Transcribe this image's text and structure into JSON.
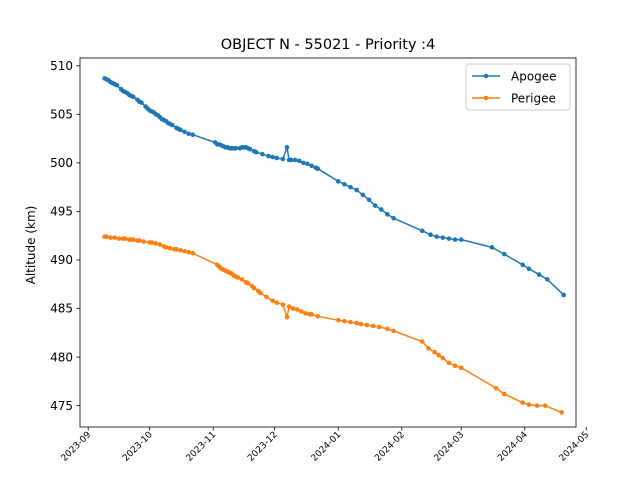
{
  "chart_data": {
    "type": "line",
    "title": "OBJECT N - 55021 - Priority :4",
    "xlabel": "",
    "ylabel": "Altitude (km)",
    "x_ticks": [
      "2023-09",
      "2023-10",
      "2023-11",
      "2023-12",
      "2024-01",
      "2024-02",
      "2024-03",
      "2024-04",
      "2024-05"
    ],
    "y_ticks": [
      475,
      480,
      485,
      490,
      495,
      500,
      505,
      510
    ],
    "ylim": [
      472.8,
      510.8
    ],
    "xlim": [
      "2023-08-28",
      "2024-04-26"
    ],
    "grid": false,
    "legend": "top-right",
    "colors": {
      "Apogee": "#1f77b4",
      "Perigee": "#ff7f0e"
    },
    "series": [
      {
        "name": "Apogee",
        "points": [
          [
            "2023-09-09",
            508.7
          ],
          [
            "2023-09-10",
            508.6
          ],
          [
            "2023-09-11",
            508.5
          ],
          [
            "2023-09-12",
            508.3
          ],
          [
            "2023-09-13",
            508.2
          ],
          [
            "2023-09-14",
            508.1
          ],
          [
            "2023-09-15",
            508.0
          ],
          [
            "2023-09-17",
            507.6
          ],
          [
            "2023-09-18",
            507.4
          ],
          [
            "2023-09-19",
            507.3
          ],
          [
            "2023-09-20",
            507.2
          ],
          [
            "2023-09-21",
            507.0
          ],
          [
            "2023-09-22",
            506.9
          ],
          [
            "2023-09-23",
            506.8
          ],
          [
            "2023-09-25",
            506.5
          ],
          [
            "2023-09-26",
            506.3
          ],
          [
            "2023-09-27",
            506.2
          ],
          [
            "2023-09-29",
            505.8
          ],
          [
            "2023-09-30",
            505.6
          ],
          [
            "2023-10-01",
            505.4
          ],
          [
            "2023-10-02",
            505.3
          ],
          [
            "2023-10-03",
            505.2
          ],
          [
            "2023-10-04",
            505.0
          ],
          [
            "2023-10-05",
            504.9
          ],
          [
            "2023-10-06",
            504.7
          ],
          [
            "2023-10-07",
            504.5
          ],
          [
            "2023-10-08",
            504.4
          ],
          [
            "2023-10-09",
            504.3
          ],
          [
            "2023-10-10",
            504.1
          ],
          [
            "2023-10-11",
            504.0
          ],
          [
            "2023-10-12",
            503.9
          ],
          [
            "2023-10-14",
            503.6
          ],
          [
            "2023-10-15",
            503.5
          ],
          [
            "2023-10-16",
            503.4
          ],
          [
            "2023-10-18",
            503.2
          ],
          [
            "2023-10-20",
            503.0
          ],
          [
            "2023-10-22",
            502.9
          ],
          [
            "2023-11-02",
            502.1
          ],
          [
            "2023-11-03",
            501.9
          ],
          [
            "2023-11-04",
            501.9
          ],
          [
            "2023-11-05",
            501.8
          ],
          [
            "2023-11-06",
            501.7
          ],
          [
            "2023-11-07",
            501.6
          ],
          [
            "2023-11-08",
            501.6
          ],
          [
            "2023-11-09",
            501.5
          ],
          [
            "2023-11-10",
            501.5
          ],
          [
            "2023-11-11",
            501.5
          ],
          [
            "2023-11-12",
            501.5
          ],
          [
            "2023-11-14",
            501.5
          ],
          [
            "2023-11-15",
            501.6
          ],
          [
            "2023-11-16",
            501.6
          ],
          [
            "2023-11-17",
            501.6
          ],
          [
            "2023-11-18",
            501.5
          ],
          [
            "2023-11-19",
            501.4
          ],
          [
            "2023-11-21",
            501.2
          ],
          [
            "2023-11-22",
            501.1
          ],
          [
            "2023-11-25",
            500.9
          ],
          [
            "2023-11-28",
            500.7
          ],
          [
            "2023-11-30",
            500.6
          ],
          [
            "2023-12-02",
            500.5
          ],
          [
            "2023-12-05",
            500.4
          ],
          [
            "2023-12-07",
            501.6
          ],
          [
            "2023-12-08",
            500.3
          ],
          [
            "2023-12-09",
            500.3
          ],
          [
            "2023-12-11",
            500.3
          ],
          [
            "2023-12-13",
            500.2
          ],
          [
            "2023-12-15",
            500.0
          ],
          [
            "2023-12-17",
            499.9
          ],
          [
            "2023-12-19",
            499.7
          ],
          [
            "2023-12-21",
            499.5
          ],
          [
            "2023-12-22",
            499.4
          ],
          [
            "2024-01-01",
            498.1
          ],
          [
            "2024-01-04",
            497.8
          ],
          [
            "2024-01-07",
            497.5
          ],
          [
            "2024-01-10",
            497.2
          ],
          [
            "2024-01-13",
            496.7
          ],
          [
            "2024-01-16",
            496.2
          ],
          [
            "2024-01-19",
            495.6
          ],
          [
            "2024-01-22",
            495.2
          ],
          [
            "2024-01-25",
            494.7
          ],
          [
            "2024-01-28",
            494.3
          ],
          [
            "2024-02-11",
            493.0
          ],
          [
            "2024-02-15",
            492.6
          ],
          [
            "2024-02-18",
            492.4
          ],
          [
            "2024-02-21",
            492.3
          ],
          [
            "2024-02-24",
            492.2
          ],
          [
            "2024-02-27",
            492.1
          ],
          [
            "2024-03-01",
            492.1
          ],
          [
            "2024-03-16",
            491.3
          ],
          [
            "2024-03-22",
            490.6
          ],
          [
            "2024-03-31",
            489.5
          ],
          [
            "2024-04-03",
            489.1
          ],
          [
            "2024-04-08",
            488.5
          ],
          [
            "2024-04-12",
            488.0
          ],
          [
            "2024-04-20",
            486.4
          ]
        ]
      },
      {
        "name": "Perigee",
        "points": [
          [
            "2023-09-09",
            492.4
          ],
          [
            "2023-09-10",
            492.4
          ],
          [
            "2023-09-12",
            492.3
          ],
          [
            "2023-09-14",
            492.3
          ],
          [
            "2023-09-16",
            492.2
          ],
          [
            "2023-09-18",
            492.2
          ],
          [
            "2023-09-19",
            492.2
          ],
          [
            "2023-09-21",
            492.1
          ],
          [
            "2023-09-22",
            492.1
          ],
          [
            "2023-09-23",
            492.1
          ],
          [
            "2023-09-25",
            492.0
          ],
          [
            "2023-09-26",
            492.0
          ],
          [
            "2023-09-28",
            491.9
          ],
          [
            "2023-10-01",
            491.8
          ],
          [
            "2023-10-02",
            491.8
          ],
          [
            "2023-10-04",
            491.7
          ],
          [
            "2023-10-06",
            491.6
          ],
          [
            "2023-10-08",
            491.4
          ],
          [
            "2023-10-09",
            491.3
          ],
          [
            "2023-10-11",
            491.2
          ],
          [
            "2023-10-13",
            491.1
          ],
          [
            "2023-10-14",
            491.1
          ],
          [
            "2023-10-16",
            491.0
          ],
          [
            "2023-10-18",
            490.9
          ],
          [
            "2023-10-20",
            490.8
          ],
          [
            "2023-10-22",
            490.7
          ],
          [
            "2023-11-03",
            489.5
          ],
          [
            "2023-11-04",
            489.3
          ],
          [
            "2023-11-05",
            489.1
          ],
          [
            "2023-11-06",
            489.0
          ],
          [
            "2023-11-07",
            488.9
          ],
          [
            "2023-11-08",
            488.8
          ],
          [
            "2023-11-09",
            488.7
          ],
          [
            "2023-11-10",
            488.6
          ],
          [
            "2023-11-11",
            488.4
          ],
          [
            "2023-11-12",
            488.3
          ],
          [
            "2023-11-13",
            488.2
          ],
          [
            "2023-11-15",
            488.0
          ],
          [
            "2023-11-17",
            487.7
          ],
          [
            "2023-11-18",
            487.6
          ],
          [
            "2023-11-20",
            487.3
          ],
          [
            "2023-11-21",
            487.1
          ],
          [
            "2023-11-23",
            486.8
          ],
          [
            "2023-11-24",
            486.6
          ],
          [
            "2023-11-27",
            486.2
          ],
          [
            "2023-11-30",
            485.8
          ],
          [
            "2023-12-02",
            485.6
          ],
          [
            "2023-12-05",
            485.4
          ],
          [
            "2023-12-07",
            484.1
          ],
          [
            "2023-12-08",
            485.2
          ],
          [
            "2023-12-10",
            485.0
          ],
          [
            "2023-12-12",
            484.9
          ],
          [
            "2023-12-14",
            484.7
          ],
          [
            "2023-12-16",
            484.5
          ],
          [
            "2023-12-18",
            484.4
          ],
          [
            "2023-12-19",
            484.4
          ],
          [
            "2023-12-22",
            484.2
          ],
          [
            "2024-01-01",
            483.8
          ],
          [
            "2024-01-04",
            483.7
          ],
          [
            "2024-01-07",
            483.6
          ],
          [
            "2024-01-10",
            483.5
          ],
          [
            "2024-01-12",
            483.4
          ],
          [
            "2024-01-15",
            483.3
          ],
          [
            "2024-01-18",
            483.2
          ],
          [
            "2024-01-21",
            483.1
          ],
          [
            "2024-01-25",
            482.9
          ],
          [
            "2024-01-28",
            482.7
          ],
          [
            "2024-02-11",
            481.6
          ],
          [
            "2024-02-14",
            480.9
          ],
          [
            "2024-02-17",
            480.5
          ],
          [
            "2024-02-19",
            480.2
          ],
          [
            "2024-02-21",
            479.9
          ],
          [
            "2024-02-24",
            479.4
          ],
          [
            "2024-02-27",
            479.1
          ],
          [
            "2024-03-01",
            478.9
          ],
          [
            "2024-03-18",
            476.8
          ],
          [
            "2024-03-22",
            476.2
          ],
          [
            "2024-03-31",
            475.3
          ],
          [
            "2024-04-03",
            475.1
          ],
          [
            "2024-04-07",
            475.0
          ],
          [
            "2024-04-11",
            475.0
          ],
          [
            "2024-04-19",
            474.3
          ]
        ]
      }
    ]
  }
}
